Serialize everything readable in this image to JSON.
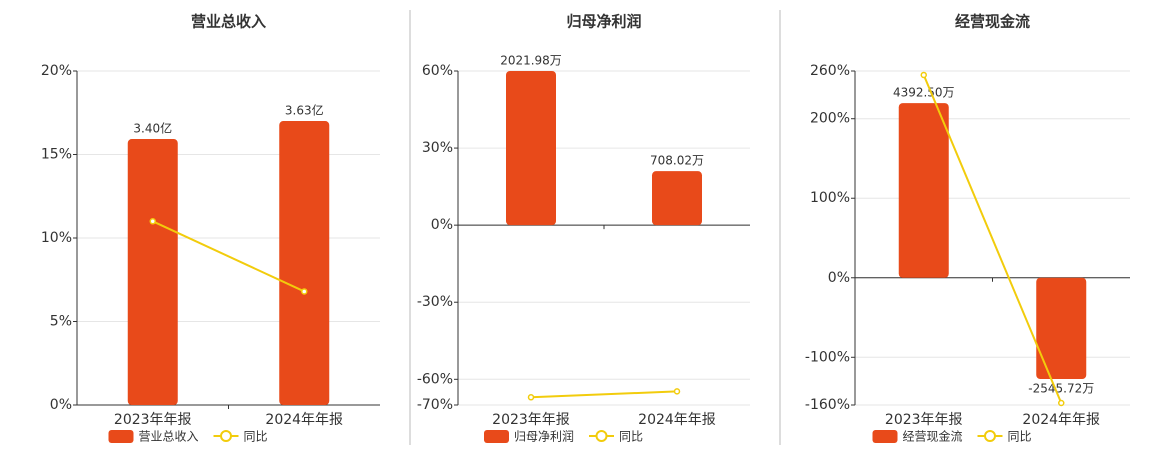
{
  "chart_data": [
    {
      "type": "combo",
      "title": "营业总收入",
      "categories": [
        "2023年年报",
        "2024年年报"
      ],
      "series": [
        {
          "name": "营业总收入",
          "color": "#e84a1a",
          "values": [
            3.4,
            3.63
          ],
          "value_labels": [
            "3.40亿",
            "3.63亿"
          ],
          "axis": "y2"
        },
        {
          "name": "同比",
          "color": "#f2cc0c",
          "values": [
            11,
            6.8
          ]
        }
      ],
      "ylim": [
        0,
        20
      ],
      "yticks": [
        {
          "value": 0,
          "label": "0%"
        },
        {
          "value": 5,
          "label": "5%"
        },
        {
          "value": 10,
          "label": "10%"
        },
        {
          "value": 15,
          "label": "15%"
        },
        {
          "value": 20,
          "label": "20%"
        }
      ],
      "y2lim": [
        0,
        4.27
      ],
      "grid": true
    },
    {
      "type": "combo",
      "title": "归母净利润",
      "categories": [
        "2023年年报",
        "2024年年报"
      ],
      "series": [
        {
          "name": "归母净利润",
          "color": "#e84a1a",
          "values": [
            2021.98,
            708.02
          ],
          "value_labels": [
            "2021.98万",
            "708.02万"
          ],
          "axis": "y2"
        },
        {
          "name": "同比",
          "color": "#f2cc0c",
          "values": [
            -67,
            -64.7
          ]
        }
      ],
      "ylim": [
        -70,
        60
      ],
      "yticks": [
        {
          "value": 60,
          "label": "60%"
        },
        {
          "value": 30,
          "label": "30%"
        },
        {
          "value": 0,
          "label": "0%"
        },
        {
          "value": -30,
          "label": "-30%"
        },
        {
          "value": -60,
          "label": "-60%"
        },
        {
          "value": -70,
          "label": "-70%"
        }
      ],
      "y2lim": [
        -2359,
        2021.98
      ],
      "grid": true
    },
    {
      "type": "combo",
      "title": "经营现金流",
      "categories": [
        "2023年年报",
        "2024年年报"
      ],
      "series": [
        {
          "name": "经营现金流",
          "color": "#e84a1a",
          "values": [
            4392.5,
            -2545.72
          ],
          "value_labels": [
            "4392.50万",
            "-2545.72万"
          ],
          "axis": "y2"
        },
        {
          "name": "同比",
          "color": "#f2cc0c",
          "values": [
            255,
            -157.5
          ]
        }
      ],
      "ylim": [
        -160,
        260
      ],
      "yticks": [
        {
          "value": 260,
          "label": "260%"
        },
        {
          "value": 200,
          "label": "200%"
        },
        {
          "value": 100,
          "label": "100%"
        },
        {
          "value": 0,
          "label": "0%"
        },
        {
          "value": -100,
          "label": "-100%"
        },
        {
          "value": -160,
          "label": "-160%"
        }
      ],
      "y2lim": [
        -3200,
        5200
      ],
      "grid": true
    }
  ]
}
